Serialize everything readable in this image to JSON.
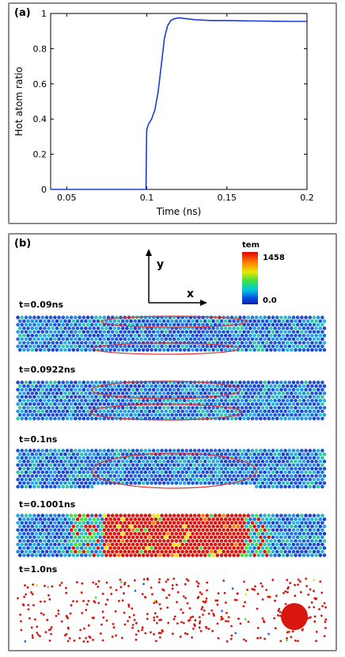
{
  "panel_a": {
    "label": "(a)",
    "chart_data": {
      "type": "line",
      "title": "",
      "xlabel": "Time (ns)",
      "ylabel": "Hot atom ratio",
      "xlim": [
        0.04,
        0.2
      ],
      "ylim": [
        0,
        1
      ],
      "xticks": [
        "0.05",
        "0.1",
        "0.15",
        "0.2"
      ],
      "yticks": [
        "0",
        "0.2",
        "0.4",
        "0.6",
        "0.8",
        "1"
      ],
      "grid": false,
      "series_color": "#1f3bd6",
      "x": [
        0.04,
        0.0995,
        0.0999,
        0.1,
        0.101,
        0.103,
        0.105,
        0.107,
        0.109,
        0.111,
        0.113,
        0.115,
        0.117,
        0.12,
        0.125,
        0.13,
        0.14,
        0.15,
        0.16,
        0.17,
        0.18,
        0.19,
        0.2
      ],
      "y": [
        0.0,
        0.0,
        0.32,
        0.34,
        0.37,
        0.4,
        0.45,
        0.55,
        0.7,
        0.86,
        0.93,
        0.96,
        0.97,
        0.975,
        0.97,
        0.965,
        0.96,
        0.96,
        0.958,
        0.957,
        0.956,
        0.955,
        0.955
      ]
    }
  },
  "panel_b": {
    "label": "(b)",
    "axes": {
      "y_label": "y",
      "x_label": "x"
    },
    "colorbar": {
      "title": "tem",
      "max_label": "1458",
      "min_label": "0.0"
    },
    "frames": [
      {
        "label": "t=0.09ns"
      },
      {
        "label": "t=0.0922ns"
      },
      {
        "label": "t=0.1ns"
      },
      {
        "label": "t=0.1001ns"
      },
      {
        "label": "t=1.0ns"
      }
    ]
  },
  "colors": {
    "line": "#1f3bd6",
    "ellipse": "#d93030",
    "hot": "#d9160e",
    "atom_base": "#1a55d8",
    "panel_border": "#8a8a8a"
  }
}
